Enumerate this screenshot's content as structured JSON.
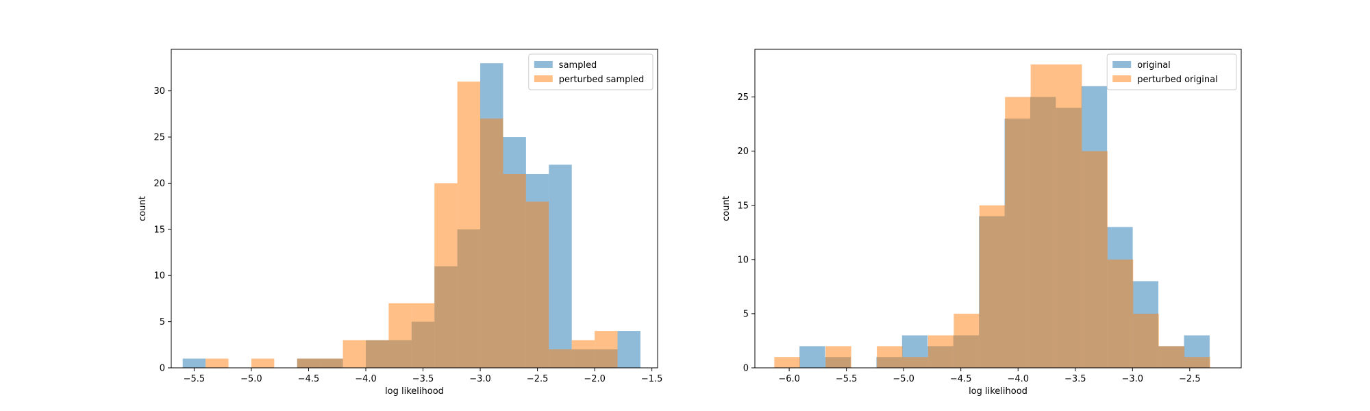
{
  "chart_data": [
    {
      "type": "bar",
      "histogram": true,
      "xlabel": "log likelihood",
      "ylabel": "count",
      "xlim": [
        -5.7,
        -1.45
      ],
      "ylim": [
        0,
        34.5
      ],
      "xticks": [
        -5.5,
        -5.0,
        -4.5,
        -4.0,
        -3.5,
        -3.0,
        -2.5,
        -2.0,
        -1.5
      ],
      "xtick_labels": [
        "−5.5",
        "−5.0",
        "−4.5",
        "−4.0",
        "−3.5",
        "−3.0",
        "−2.5",
        "−2.0",
        "−1.5"
      ],
      "yticks": [
        0,
        5,
        10,
        15,
        20,
        25,
        30
      ],
      "yticks_labels": [
        "0",
        "5",
        "10",
        "15",
        "20",
        "25",
        "30"
      ],
      "legend_position": "upper right",
      "series": [
        {
          "name": "sampled",
          "color": "#1f77b4",
          "bin_width": 0.2,
          "bin_starts": [
            -5.6,
            -5.4,
            -5.2,
            -5.0,
            -4.8,
            -4.6,
            -4.4,
            -4.2,
            -4.0,
            -3.8,
            -3.6,
            -3.4,
            -3.2,
            -3.0,
            -2.8,
            -2.6,
            -2.4,
            -2.2,
            -2.0,
            -1.8
          ],
          "counts": [
            1,
            0,
            0,
            0,
            0,
            1,
            1,
            0,
            3,
            3,
            5,
            11,
            15,
            33,
            25,
            21,
            22,
            2,
            2,
            4
          ]
        },
        {
          "name": "perturbed sampled",
          "color": "#ff7f0e",
          "bin_width": 0.2,
          "bin_starts": [
            -5.4,
            -5.2,
            -5.0,
            -4.8,
            -4.6,
            -4.4,
            -4.2,
            -4.0,
            -3.8,
            -3.6,
            -3.4,
            -3.2,
            -3.0,
            -2.8,
            -2.6,
            -2.4,
            -2.2,
            -2.0
          ],
          "counts": [
            1,
            0,
            1,
            0,
            1,
            1,
            3,
            3,
            7,
            7,
            20,
            31,
            27,
            21,
            18,
            2,
            3,
            4
          ]
        }
      ]
    },
    {
      "type": "bar",
      "histogram": true,
      "xlabel": "log likelihood",
      "ylabel": "count",
      "xlim": [
        -6.3,
        -2.05
      ],
      "ylim": [
        0,
        29.4
      ],
      "xticks": [
        -6.0,
        -5.5,
        -5.0,
        -4.5,
        -4.0,
        -3.5,
        -3.0,
        -2.5
      ],
      "xtick_labels": [
        "−6.0",
        "−5.5",
        "−5.0",
        "−4.5",
        "−4.0",
        "−3.5",
        "−3.0",
        "−2.5"
      ],
      "yticks": [
        0,
        5,
        10,
        15,
        20,
        25
      ],
      "yticks_labels": [
        "0",
        "5",
        "10",
        "15",
        "20",
        "25"
      ],
      "legend_position": "upper right",
      "series": [
        {
          "name": "original",
          "color": "#1f77b4",
          "bin_width": 0.224,
          "bin_starts": [
            -5.91,
            -5.686,
            -5.462,
            -5.238,
            -5.014,
            -4.79,
            -4.566,
            -4.342,
            -4.118,
            -3.894,
            -3.67,
            -3.446,
            -3.222,
            -2.998,
            -2.774,
            -2.55,
            -2.326
          ],
          "counts": [
            2,
            1,
            0,
            1,
            3,
            2,
            3,
            14,
            23,
            25,
            24,
            26,
            13,
            8,
            2,
            3,
            0
          ]
        },
        {
          "name": "perturbed original",
          "color": "#ff7f0e",
          "bin_width": 0.224,
          "bin_starts": [
            -6.13,
            -5.906,
            -5.682,
            -5.458,
            -5.234,
            -5.01,
            -4.786,
            -4.562,
            -4.338,
            -4.114,
            -3.89,
            -3.666,
            -3.442,
            -3.218,
            -2.994,
            -2.77,
            -2.546
          ],
          "counts": [
            1,
            0,
            2,
            0,
            2,
            1,
            3,
            5,
            15,
            25,
            28,
            28,
            20,
            10,
            5,
            2,
            1
          ]
        }
      ]
    }
  ]
}
